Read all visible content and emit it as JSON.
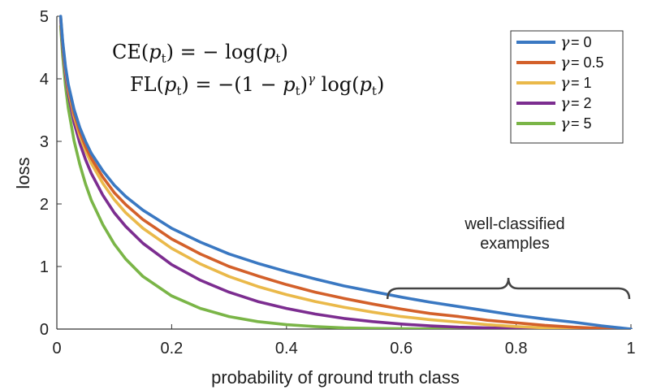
{
  "chart_data": {
    "type": "line",
    "title": "",
    "xlabel": "probability of ground truth class",
    "ylabel": "loss",
    "xlim": [
      0,
      1
    ],
    "ylim": [
      0,
      5
    ],
    "x_ticks": [
      "0",
      "0.2",
      "0.4",
      "0.6",
      "0.8",
      "1"
    ],
    "y_ticks": [
      "0",
      "1",
      "2",
      "3",
      "4",
      "5"
    ],
    "x_tick_values": [
      0,
      0.2,
      0.4,
      0.6,
      0.8,
      1
    ],
    "y_tick_values": [
      0,
      1,
      2,
      3,
      4,
      5
    ],
    "grid": false,
    "legend_position": "top-right",
    "legend_symbol": "γ",
    "legend_equals": " = ",
    "x": [
      0.0067,
      0.01,
      0.015,
      0.02,
      0.03,
      0.04,
      0.05,
      0.06,
      0.08,
      0.1,
      0.12,
      0.15,
      0.2,
      0.25,
      0.3,
      0.35,
      0.4,
      0.45,
      0.5,
      0.55,
      0.6,
      0.65,
      0.7,
      0.75,
      0.8,
      0.85,
      0.9,
      0.95,
      1.0
    ],
    "series": [
      {
        "name": "0",
        "color": "#3a78c2",
        "values": [
          5.0,
          4.61,
          4.2,
          3.91,
          3.51,
          3.22,
          3.0,
          2.81,
          2.53,
          2.3,
          2.12,
          1.9,
          1.61,
          1.39,
          1.2,
          1.05,
          0.92,
          0.8,
          0.69,
          0.6,
          0.51,
          0.43,
          0.36,
          0.29,
          0.22,
          0.16,
          0.11,
          0.05,
          0.0
        ]
      },
      {
        "name": "0.5",
        "color": "#d3602a",
        "values": [
          4.98,
          4.58,
          4.17,
          3.87,
          3.45,
          3.15,
          2.92,
          2.73,
          2.43,
          2.18,
          1.99,
          1.75,
          1.44,
          1.2,
          1.0,
          0.85,
          0.71,
          0.59,
          0.49,
          0.4,
          0.32,
          0.25,
          0.2,
          0.14,
          0.1,
          0.06,
          0.03,
          0.01,
          0.0
        ]
      },
      {
        "name": "1",
        "color": "#eab94a",
        "values": [
          4.97,
          4.56,
          4.14,
          3.83,
          3.4,
          3.09,
          2.85,
          2.65,
          2.33,
          2.07,
          1.86,
          1.61,
          1.29,
          1.04,
          0.84,
          0.68,
          0.55,
          0.44,
          0.35,
          0.27,
          0.2,
          0.15,
          0.11,
          0.07,
          0.04,
          0.02,
          0.01,
          0.003,
          0.0
        ]
      },
      {
        "name": "2",
        "color": "#7c2d90",
        "values": [
          4.93,
          4.52,
          4.07,
          3.76,
          3.3,
          2.97,
          2.71,
          2.49,
          2.14,
          1.86,
          1.64,
          1.37,
          1.03,
          0.78,
          0.59,
          0.44,
          0.33,
          0.24,
          0.17,
          0.12,
          0.08,
          0.05,
          0.03,
          0.02,
          0.01,
          0.004,
          0.001,
          0.0001,
          0.0
        ]
      },
      {
        "name": "5",
        "color": "#7ab547",
        "values": [
          4.84,
          4.38,
          3.89,
          3.53,
          3.01,
          2.63,
          2.32,
          2.06,
          1.67,
          1.36,
          1.12,
          0.84,
          0.53,
          0.33,
          0.2,
          0.12,
          0.07,
          0.04,
          0.02,
          0.01,
          0.005,
          0.002,
          0.001,
          0.0,
          0.0,
          0.0,
          0.0,
          0.0,
          0.0
        ]
      }
    ],
    "annotations": {
      "brace_text_line1": "well-classified",
      "brace_text_line2": "examples",
      "brace_x_range": [
        0.6,
        1.0
      ],
      "brace_y": 0.65
    },
    "formulas": {
      "ce": {
        "lhs": "CE",
        "var": "p",
        "sub": "t",
        "op": "−",
        "func": "log"
      },
      "fl": {
        "lhs": "FL",
        "var": "p",
        "sub": "t",
        "op": "−",
        "one": "1",
        "exp": "γ",
        "func": "log"
      }
    }
  }
}
